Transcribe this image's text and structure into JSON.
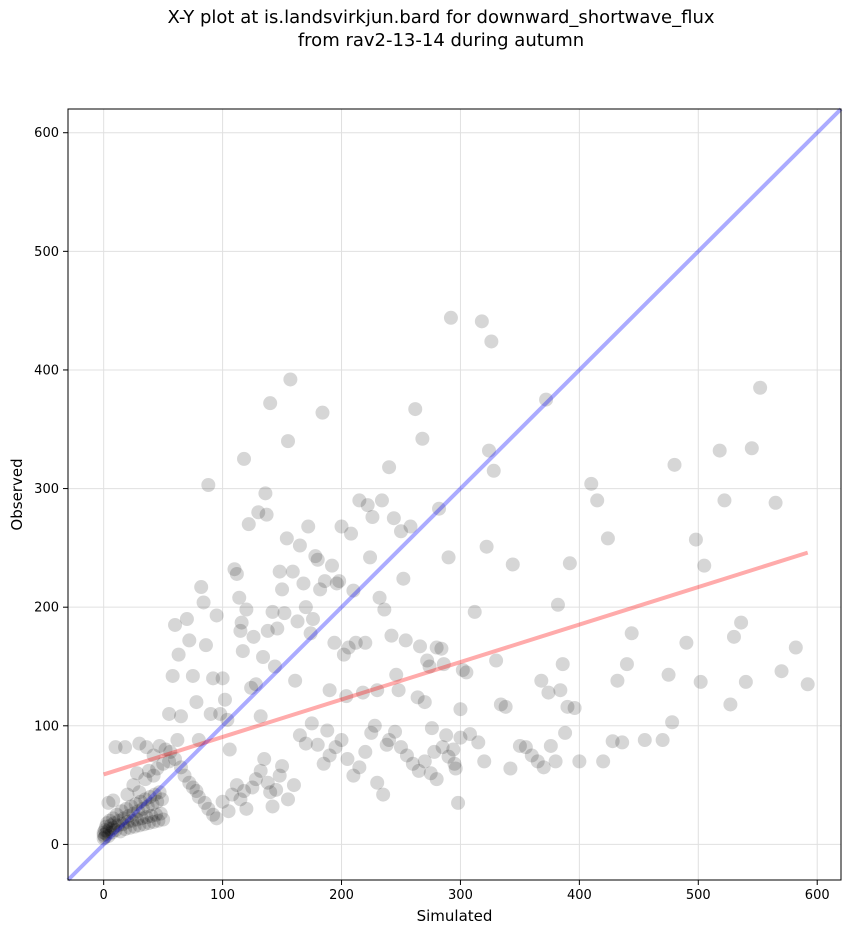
{
  "chart_data": {
    "type": "scatter",
    "title_line1": "X-Y plot at is.landsvirkjun.bard for downward_shortwave_flux",
    "title_line2": "from rav2-13-14 during autumn",
    "xlabel": "Simulated",
    "ylabel": "Observed",
    "xlim": [
      -30,
      620
    ],
    "ylim": [
      -30,
      620
    ],
    "xticks": [
      0,
      100,
      200,
      300,
      400,
      500,
      600
    ],
    "yticks": [
      0,
      100,
      200,
      300,
      400,
      500,
      600
    ],
    "grid": true,
    "colors": {
      "points": "#000000",
      "identity_line": "#0000ff",
      "fit_line": "#ff0000",
      "grid": "#e0e0e0"
    },
    "identity_line": {
      "from": [
        -30,
        -30
      ],
      "to": [
        620,
        620
      ]
    },
    "fit_line": {
      "from": [
        0,
        59
      ],
      "to": [
        592,
        246
      ]
    },
    "points": [
      [
        0,
        5
      ],
      [
        0,
        8
      ],
      [
        0,
        10
      ],
      [
        1,
        12
      ],
      [
        1,
        6
      ],
      [
        2,
        15
      ],
      [
        2,
        9
      ],
      [
        3,
        18
      ],
      [
        3,
        11
      ],
      [
        4,
        7
      ],
      [
        5,
        20
      ],
      [
        5,
        13
      ],
      [
        6,
        16
      ],
      [
        7,
        10
      ],
      [
        8,
        22
      ],
      [
        8,
        14
      ],
      [
        9,
        18
      ],
      [
        10,
        12
      ],
      [
        11,
        25
      ],
      [
        12,
        16
      ],
      [
        13,
        20
      ],
      [
        14,
        11
      ],
      [
        15,
        28
      ],
      [
        16,
        17
      ],
      [
        17,
        22
      ],
      [
        18,
        13
      ],
      [
        19,
        30
      ],
      [
        20,
        19
      ],
      [
        21,
        24
      ],
      [
        22,
        14
      ],
      [
        23,
        32
      ],
      [
        24,
        20
      ],
      [
        25,
        26
      ],
      [
        26,
        15
      ],
      [
        27,
        34
      ],
      [
        28,
        21
      ],
      [
        29,
        28
      ],
      [
        30,
        16
      ],
      [
        31,
        36
      ],
      [
        32,
        22
      ],
      [
        33,
        30
      ],
      [
        34,
        17
      ],
      [
        35,
        38
      ],
      [
        36,
        23
      ],
      [
        37,
        32
      ],
      [
        38,
        18
      ],
      [
        39,
        40
      ],
      [
        40,
        24
      ],
      [
        41,
        34
      ],
      [
        42,
        19
      ],
      [
        43,
        42
      ],
      [
        44,
        25
      ],
      [
        45,
        36
      ],
      [
        46,
        20
      ],
      [
        47,
        44
      ],
      [
        48,
        26
      ],
      [
        49,
        38
      ],
      [
        50,
        21
      ],
      [
        4,
        35
      ],
      [
        8,
        37
      ],
      [
        10,
        82
      ],
      [
        18,
        82
      ],
      [
        28,
        60
      ],
      [
        30,
        85
      ],
      [
        36,
        82
      ],
      [
        42,
        75
      ],
      [
        47,
        83
      ],
      [
        52,
        80
      ],
      [
        56,
        78
      ],
      [
        62,
        88
      ],
      [
        55,
        110
      ],
      [
        58,
        142
      ],
      [
        60,
        185
      ],
      [
        63,
        160
      ],
      [
        65,
        108
      ],
      [
        70,
        190
      ],
      [
        72,
        172
      ],
      [
        75,
        142
      ],
      [
        78,
        120
      ],
      [
        80,
        88
      ],
      [
        82,
        217
      ],
      [
        84,
        204
      ],
      [
        86,
        168
      ],
      [
        88,
        303
      ],
      [
        90,
        110
      ],
      [
        92,
        140
      ],
      [
        95,
        193
      ],
      [
        98,
        110
      ],
      [
        100,
        140
      ],
      [
        102,
        122
      ],
      [
        104,
        105
      ],
      [
        106,
        80
      ],
      [
        110,
        232
      ],
      [
        112,
        228
      ],
      [
        114,
        208
      ],
      [
        115,
        180
      ],
      [
        116,
        187
      ],
      [
        117,
        163
      ],
      [
        118,
        325
      ],
      [
        120,
        198
      ],
      [
        122,
        270
      ],
      [
        124,
        132
      ],
      [
        126,
        175
      ],
      [
        128,
        135
      ],
      [
        130,
        280
      ],
      [
        132,
        108
      ],
      [
        134,
        158
      ],
      [
        136,
        296
      ],
      [
        137,
        278
      ],
      [
        138,
        180
      ],
      [
        140,
        372
      ],
      [
        142,
        196
      ],
      [
        144,
        150
      ],
      [
        146,
        182
      ],
      [
        148,
        230
      ],
      [
        150,
        215
      ],
      [
        152,
        195
      ],
      [
        154,
        258
      ],
      [
        155,
        340
      ],
      [
        157,
        392
      ],
      [
        159,
        230
      ],
      [
        161,
        138
      ],
      [
        163,
        188
      ],
      [
        165,
        252
      ],
      [
        168,
        220
      ],
      [
        170,
        200
      ],
      [
        172,
        268
      ],
      [
        174,
        178
      ],
      [
        176,
        190
      ],
      [
        178,
        243
      ],
      [
        180,
        240
      ],
      [
        182,
        215
      ],
      [
        184,
        364
      ],
      [
        186,
        222
      ],
      [
        188,
        96
      ],
      [
        190,
        130
      ],
      [
        192,
        235
      ],
      [
        194,
        170
      ],
      [
        196,
        220
      ],
      [
        198,
        222
      ],
      [
        200,
        268
      ],
      [
        202,
        160
      ],
      [
        204,
        125
      ],
      [
        206,
        166
      ],
      [
        208,
        262
      ],
      [
        210,
        214
      ],
      [
        212,
        170
      ],
      [
        215,
        290
      ],
      [
        218,
        128
      ],
      [
        220,
        170
      ],
      [
        222,
        286
      ],
      [
        224,
        242
      ],
      [
        226,
        276
      ],
      [
        228,
        100
      ],
      [
        230,
        130
      ],
      [
        232,
        208
      ],
      [
        234,
        290
      ],
      [
        236,
        198
      ],
      [
        238,
        84
      ],
      [
        240,
        318
      ],
      [
        242,
        176
      ],
      [
        244,
        275
      ],
      [
        246,
        143
      ],
      [
        248,
        130
      ],
      [
        250,
        264
      ],
      [
        252,
        224
      ],
      [
        254,
        172
      ],
      [
        258,
        268
      ],
      [
        262,
        367
      ],
      [
        264,
        124
      ],
      [
        266,
        167
      ],
      [
        268,
        342
      ],
      [
        270,
        120
      ],
      [
        272,
        155
      ],
      [
        274,
        150
      ],
      [
        276,
        98
      ],
      [
        278,
        78
      ],
      [
        280,
        166
      ],
      [
        282,
        283
      ],
      [
        284,
        165
      ],
      [
        286,
        152
      ],
      [
        288,
        92
      ],
      [
        290,
        242
      ],
      [
        292,
        444
      ],
      [
        294,
        80
      ],
      [
        296,
        64
      ],
      [
        298,
        35
      ],
      [
        300,
        114
      ],
      [
        302,
        147
      ],
      [
        305,
        145
      ],
      [
        308,
        93
      ],
      [
        312,
        196
      ],
      [
        315,
        86
      ],
      [
        318,
        441
      ],
      [
        320,
        70
      ],
      [
        322,
        251
      ],
      [
        324,
        332
      ],
      [
        326,
        424
      ],
      [
        328,
        315
      ],
      [
        330,
        155
      ],
      [
        334,
        118
      ],
      [
        338,
        116
      ],
      [
        342,
        64
      ],
      [
        344,
        236
      ],
      [
        350,
        83
      ],
      [
        355,
        82
      ],
      [
        360,
        75
      ],
      [
        365,
        70
      ],
      [
        368,
        138
      ],
      [
        370,
        65
      ],
      [
        372,
        375
      ],
      [
        374,
        128
      ],
      [
        376,
        83
      ],
      [
        380,
        70
      ],
      [
        382,
        202
      ],
      [
        384,
        130
      ],
      [
        386,
        152
      ],
      [
        388,
        94
      ],
      [
        390,
        116
      ],
      [
        392,
        237
      ],
      [
        396,
        115
      ],
      [
        400,
        70
      ],
      [
        410,
        304
      ],
      [
        415,
        290
      ],
      [
        420,
        70
      ],
      [
        424,
        258
      ],
      [
        428,
        87
      ],
      [
        432,
        138
      ],
      [
        436,
        86
      ],
      [
        440,
        152
      ],
      [
        444,
        178
      ],
      [
        455,
        88
      ],
      [
        470,
        88
      ],
      [
        475,
        143
      ],
      [
        478,
        103
      ],
      [
        480,
        320
      ],
      [
        490,
        170
      ],
      [
        498,
        257
      ],
      [
        502,
        137
      ],
      [
        505,
        235
      ],
      [
        518,
        332
      ],
      [
        522,
        290
      ],
      [
        527,
        118
      ],
      [
        530,
        175
      ],
      [
        536,
        187
      ],
      [
        540,
        137
      ],
      [
        545,
        334
      ],
      [
        552,
        385
      ],
      [
        565,
        288
      ],
      [
        570,
        146
      ],
      [
        582,
        166
      ],
      [
        592,
        135
      ],
      [
        20,
        42
      ],
      [
        25,
        50
      ],
      [
        30,
        44
      ],
      [
        35,
        55
      ],
      [
        38,
        62
      ],
      [
        42,
        58
      ],
      [
        45,
        64
      ],
      [
        50,
        68
      ],
      [
        55,
        70
      ],
      [
        60,
        72
      ],
      [
        65,
        65
      ],
      [
        68,
        58
      ],
      [
        72,
        52
      ],
      [
        75,
        48
      ],
      [
        78,
        45
      ],
      [
        80,
        40
      ],
      [
        85,
        35
      ],
      [
        88,
        30
      ],
      [
        92,
        25
      ],
      [
        95,
        22
      ],
      [
        100,
        36
      ],
      [
        105,
        28
      ],
      [
        108,
        42
      ],
      [
        112,
        50
      ],
      [
        115,
        38
      ],
      [
        118,
        45
      ],
      [
        120,
        30
      ],
      [
        125,
        48
      ],
      [
        128,
        55
      ],
      [
        132,
        62
      ],
      [
        135,
        72
      ],
      [
        138,
        52
      ],
      [
        140,
        44
      ],
      [
        142,
        32
      ],
      [
        145,
        46
      ],
      [
        148,
        58
      ],
      [
        150,
        66
      ],
      [
        155,
        38
      ],
      [
        160,
        50
      ],
      [
        165,
        92
      ],
      [
        170,
        85
      ],
      [
        175,
        102
      ],
      [
        180,
        84
      ],
      [
        185,
        68
      ],
      [
        190,
        75
      ],
      [
        195,
        82
      ],
      [
        200,
        88
      ],
      [
        205,
        72
      ],
      [
        210,
        58
      ],
      [
        215,
        65
      ],
      [
        220,
        78
      ],
      [
        225,
        94
      ],
      [
        230,
        52
      ],
      [
        235,
        42
      ],
      [
        240,
        88
      ],
      [
        245,
        95
      ],
      [
        250,
        82
      ],
      [
        255,
        75
      ],
      [
        260,
        68
      ],
      [
        265,
        62
      ],
      [
        270,
        70
      ],
      [
        275,
        60
      ],
      [
        280,
        55
      ],
      [
        285,
        82
      ],
      [
        290,
        74
      ],
      [
        295,
        68
      ],
      [
        300,
        90
      ]
    ]
  }
}
